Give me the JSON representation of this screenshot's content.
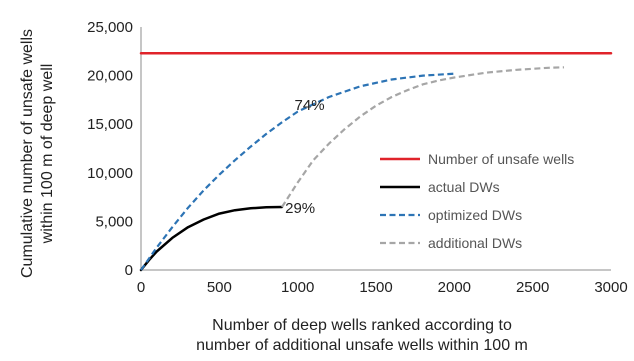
{
  "chart_data": {
    "type": "line",
    "title": "",
    "xlabel": [
      "Number of deep wells ranked according to",
      "number of additional unsafe wells within 100 m"
    ],
    "ylabel": [
      "Cumulative number of unsafe wells",
      "within 100 m of deep well"
    ],
    "xlim": [
      0,
      3000
    ],
    "ylim": [
      0,
      25000
    ],
    "x_ticks": [
      0,
      500,
      1000,
      1500,
      2000,
      2500,
      3000
    ],
    "x_tick_labels": [
      "0",
      "500",
      "1000",
      "1500",
      "2000",
      "2500",
      "3000"
    ],
    "y_ticks": [
      0,
      5000,
      10000,
      15000,
      20000,
      25000
    ],
    "y_tick_labels": [
      "0",
      "5,000",
      "10,000",
      "15,000",
      "20,000",
      "25,000"
    ],
    "grid": false,
    "legend": {
      "placement": "center-right",
      "entries": [
        {
          "name": "Number of unsafe wells",
          "color": "#e0232a",
          "style": "solid"
        },
        {
          "name": "actual DWs",
          "color": "#000000",
          "style": "solid"
        },
        {
          "name": "optimized DWs",
          "color": "#2d74b5",
          "style": "dashed"
        },
        {
          "name": "additional DWs",
          "color": "#a6a6a6",
          "style": "dashed"
        }
      ]
    },
    "series": [
      {
        "name": "Number of unsafe wells",
        "color": "#e0232a",
        "style": "solid",
        "x": [
          0,
          3000
        ],
        "y": [
          22300,
          22300
        ]
      },
      {
        "name": "actual DWs",
        "color": "#000000",
        "style": "solid",
        "x": [
          0,
          50,
          100,
          200,
          300,
          400,
          500,
          600,
          700,
          800,
          900
        ],
        "y": [
          0,
          1000,
          1900,
          3300,
          4400,
          5200,
          5800,
          6150,
          6350,
          6450,
          6480
        ]
      },
      {
        "name": "optimized DWs",
        "color": "#2d74b5",
        "style": "dashed",
        "x": [
          0,
          100,
          200,
          300,
          400,
          500,
          600,
          700,
          800,
          900,
          1000,
          1200,
          1400,
          1600,
          1800,
          2000
        ],
        "y": [
          0,
          2300,
          4400,
          6400,
          8200,
          9800,
          11300,
          12700,
          14000,
          15200,
          16300,
          17800,
          18900,
          19600,
          20000,
          20200
        ]
      },
      {
        "name": "additional DWs",
        "color": "#a6a6a6",
        "style": "dashed",
        "x": [
          900,
          1000,
          1100,
          1200,
          1300,
          1400,
          1500,
          1600,
          1700,
          1800,
          1900,
          2000,
          2200,
          2400,
          2600,
          2700
        ],
        "y": [
          6480,
          9000,
          11300,
          13000,
          14500,
          15800,
          16900,
          17800,
          18500,
          19100,
          19500,
          19800,
          20300,
          20600,
          20800,
          20850
        ]
      }
    ],
    "annotations": [
      {
        "text": "74%",
        "x": 980,
        "y": 17000
      },
      {
        "text": "29%",
        "x": 920,
        "y": 6400
      }
    ]
  }
}
